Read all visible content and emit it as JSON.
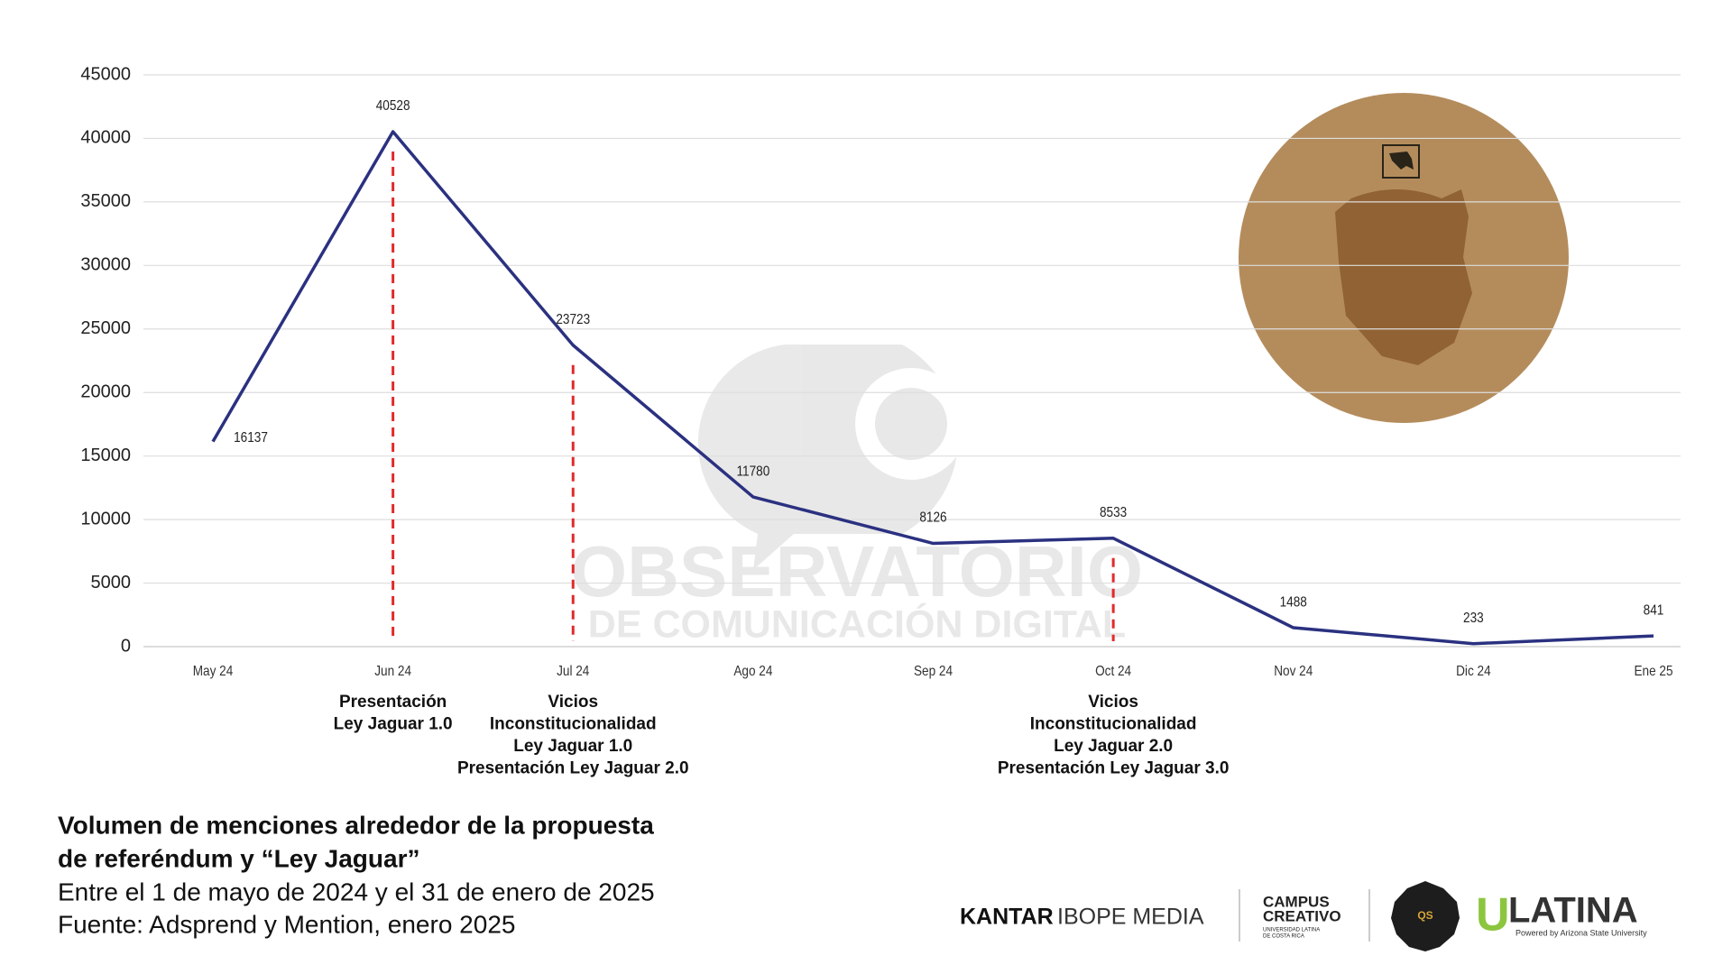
{
  "chart_data": {
    "type": "line",
    "title": [
      "Volumen de menciones alrededor de la propuesta",
      "de referéndum y “Ley Jaguar”"
    ],
    "subtitle": "Entre el 1 de mayo de 2024 y el 31 de enero de 2025",
    "source": "Fuente: Adsprend y Mention, enero 2025",
    "categories": [
      "May 24",
      "Jun 24",
      "Jul 24",
      "Ago 24",
      "Sep 24",
      "Oct 24",
      "Nov 24",
      "Dic 24",
      "Ene 25"
    ],
    "series": [
      {
        "name": "Menciones",
        "color": "#2b3180",
        "values": [
          16137,
          40528,
          23723,
          11780,
          8126,
          8533,
          1488,
          233,
          841
        ]
      }
    ],
    "ylim": [
      0,
      45000
    ],
    "yticks": [
      0,
      5000,
      10000,
      15000,
      20000,
      25000,
      30000,
      35000,
      40000,
      45000
    ],
    "grid": true,
    "annotations": [
      {
        "category": "Jun 24",
        "lines": [
          "Presentación",
          "Ley Jaguar 1.0"
        ],
        "color": "#e02a2a"
      },
      {
        "category": "Jul 24",
        "lines": [
          "Vicios",
          "Inconstitucionalidad",
          "Ley Jaguar 1.0",
          "Presentación Ley Jaguar 2.0"
        ],
        "color": "#e02a2a"
      },
      {
        "category": "Oct 24",
        "lines": [
          "Vicios",
          "Inconstitucionalidad",
          "Ley Jaguar 2.0",
          "Presentación Ley Jaguar 3.0"
        ],
        "color": "#e02a2a"
      }
    ]
  },
  "branding": {
    "watermark": [
      "OBSERVATORIO",
      "DE COMUNICACIÓN DIGITAL"
    ],
    "kantar": [
      "KANTAR",
      "IBOPE MEDIA"
    ],
    "campus": [
      "CAMPUS",
      "CREATIVO",
      "UNIVERSIDAD LATINA",
      "DE COSTA RICA"
    ],
    "badge": "QS",
    "ulatina": [
      "U",
      "LATINA",
      "Powered by Arizona State University"
    ]
  }
}
